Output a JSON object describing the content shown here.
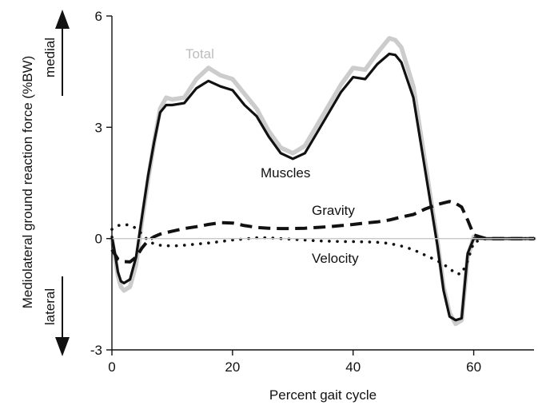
{
  "chart_data": {
    "type": "line",
    "title": "",
    "xlabel": "Percent gait cycle",
    "ylabel": "Mediolateral ground reaction force (%BW)",
    "xlim": [
      0,
      70
    ],
    "ylim": [
      -3,
      6
    ],
    "xticks": [
      0,
      20,
      40,
      60
    ],
    "yticks": [
      -3,
      0,
      3,
      6
    ],
    "grid": false,
    "zero_line": true,
    "direction_labels": {
      "up": "medial",
      "down": "lateral"
    },
    "series": [
      {
        "name": "Total",
        "color": "#cccccc",
        "style": "solid",
        "x": [
          0,
          0.5,
          1,
          1.5,
          2,
          3,
          4,
          5,
          6,
          7,
          8,
          9,
          10,
          12,
          14,
          16,
          18,
          20,
          22,
          24,
          26,
          28,
          30,
          32,
          34,
          36,
          38,
          40,
          42,
          44,
          46,
          47,
          48,
          50,
          52,
          54,
          55,
          56,
          57,
          58,
          59,
          60,
          62,
          65,
          70
        ],
        "y": [
          0,
          -0.5,
          -1.0,
          -1.3,
          -1.4,
          -1.3,
          -0.7,
          0.5,
          1.6,
          2.6,
          3.5,
          3.8,
          3.75,
          3.8,
          4.3,
          4.6,
          4.4,
          4.3,
          3.9,
          3.5,
          2.9,
          2.45,
          2.3,
          2.5,
          3.05,
          3.6,
          4.15,
          4.6,
          4.55,
          5.0,
          5.4,
          5.35,
          5.15,
          4.1,
          2.0,
          -0.1,
          -1.3,
          -2.0,
          -2.3,
          -2.2,
          -0.5,
          0.05,
          0,
          0,
          0
        ]
      },
      {
        "name": "Muscles",
        "color": "#111111",
        "style": "solid",
        "x": [
          0,
          0.5,
          1,
          1.5,
          2,
          3,
          4,
          5,
          6,
          7,
          8,
          9,
          10,
          12,
          14,
          16,
          18,
          20,
          22,
          24,
          26,
          28,
          30,
          32,
          34,
          36,
          38,
          40,
          42,
          44,
          46,
          47,
          48,
          50,
          52,
          54,
          55,
          56,
          57,
          58,
          59,
          60,
          62,
          65,
          70
        ],
        "y": [
          0.05,
          -0.4,
          -0.9,
          -1.15,
          -1.2,
          -1.1,
          -0.5,
          0.6,
          1.7,
          2.6,
          3.4,
          3.6,
          3.6,
          3.65,
          4.05,
          4.25,
          4.1,
          4.0,
          3.6,
          3.3,
          2.75,
          2.3,
          2.15,
          2.3,
          2.85,
          3.4,
          3.95,
          4.35,
          4.3,
          4.7,
          4.98,
          4.95,
          4.75,
          3.8,
          1.8,
          -0.2,
          -1.4,
          -2.1,
          -2.2,
          -2.15,
          -0.4,
          0,
          0,
          0,
          0
        ]
      },
      {
        "name": "Gravity",
        "color": "#111111",
        "style": "dashed",
        "x": [
          0,
          1,
          2,
          3,
          4,
          5,
          6,
          7,
          8,
          10,
          12,
          14,
          16,
          18,
          20,
          22,
          24,
          26,
          28,
          30,
          32,
          34,
          36,
          38,
          40,
          42,
          44,
          46,
          48,
          50,
          52,
          54,
          56,
          57,
          58,
          59,
          60,
          62,
          65,
          70
        ],
        "y": [
          -0.3,
          -0.55,
          -0.62,
          -0.63,
          -0.5,
          -0.25,
          -0.05,
          0.05,
          0.12,
          0.2,
          0.27,
          0.32,
          0.38,
          0.43,
          0.42,
          0.35,
          0.3,
          0.28,
          0.27,
          0.27,
          0.28,
          0.3,
          0.32,
          0.35,
          0.38,
          0.42,
          0.45,
          0.5,
          0.58,
          0.65,
          0.8,
          0.92,
          1.0,
          0.95,
          0.85,
          0.5,
          0.1,
          0,
          0,
          0
        ]
      },
      {
        "name": "Velocity",
        "color": "#111111",
        "style": "dotted",
        "x": [
          0,
          1,
          2,
          3,
          4,
          5,
          6,
          7,
          8,
          10,
          12,
          14,
          16,
          18,
          20,
          22,
          24,
          26,
          28,
          30,
          32,
          34,
          36,
          38,
          40,
          42,
          44,
          46,
          48,
          50,
          52,
          54,
          56,
          57,
          58,
          59,
          60,
          62,
          65,
          70
        ],
        "y": [
          0.25,
          0.35,
          0.38,
          0.36,
          0.28,
          0.12,
          -0.05,
          -0.15,
          -0.18,
          -0.2,
          -0.18,
          -0.15,
          -0.12,
          -0.08,
          -0.04,
          -0.01,
          0.02,
          0.02,
          0.0,
          -0.02,
          -0.04,
          -0.06,
          -0.07,
          -0.08,
          -0.08,
          -0.09,
          -0.1,
          -0.13,
          -0.2,
          -0.3,
          -0.45,
          -0.6,
          -0.8,
          -0.95,
          -0.95,
          -0.6,
          -0.1,
          0,
          0,
          0
        ]
      }
    ]
  }
}
